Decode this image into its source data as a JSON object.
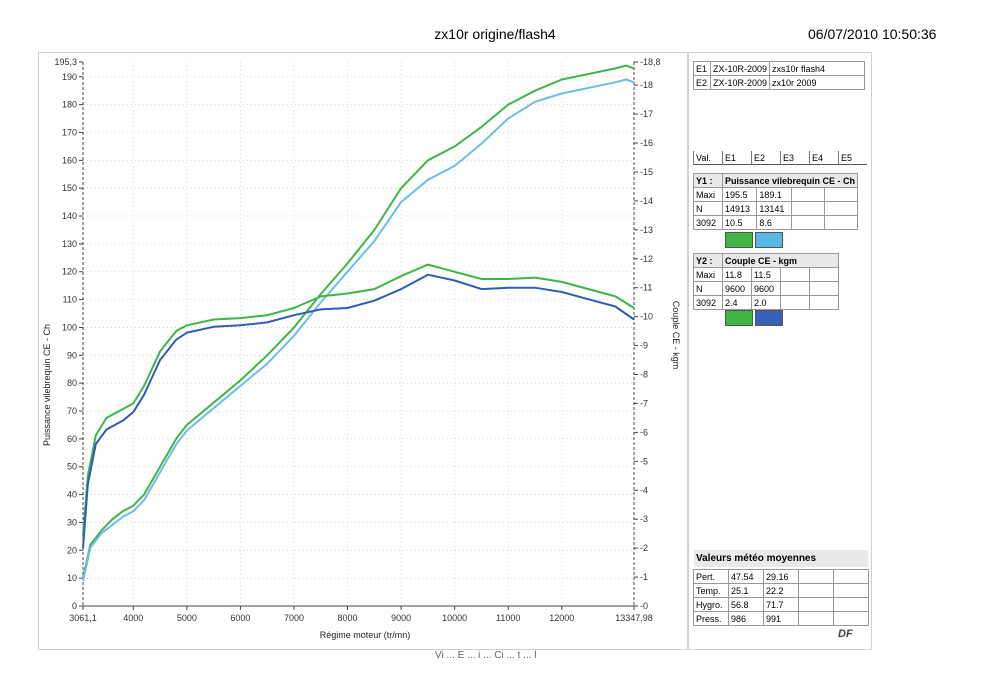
{
  "header": {
    "title": "zx10r origine/flash4",
    "datetime": "06/07/2010 10:50:36"
  },
  "entries": [
    {
      "id": "E1",
      "model": "ZX-10R-2009",
      "name": "zxs10r flash4"
    },
    {
      "id": "E2",
      "model": "ZX-10R-2009",
      "name": "zx10r 2009"
    }
  ],
  "val_header": [
    "Val.",
    "E1",
    "E2",
    "E3",
    "E4",
    "E5"
  ],
  "y1_block": {
    "key": "Y1 :",
    "title": "Puissance vilebrequin CE - Ch",
    "rows": [
      {
        "label": "Maxi",
        "e1": "195.5",
        "e2": "189.1"
      },
      {
        "label": "N",
        "e1": "14913",
        "e2": "13141"
      },
      {
        "label": "3092",
        "e1": "10.5",
        "e2": "8.6"
      }
    ],
    "swatches": [
      "#3fb548",
      "#5bb7e6"
    ]
  },
  "y2_block": {
    "key": "Y2 :",
    "title": "Couple CE - kgm",
    "rows": [
      {
        "label": "Maxi",
        "e1": "11.8",
        "e2": "11.5"
      },
      {
        "label": "N",
        "e1": "9600",
        "e2": "9600"
      },
      {
        "label": "3092",
        "e1": "2.4",
        "e2": "2.0"
      }
    ],
    "swatches": [
      "#3fb548",
      "#3562b8"
    ]
  },
  "weather": {
    "title": "Valeurs météo moyennes",
    "rows": [
      {
        "label": "Pert.",
        "v1": "47.54",
        "v2": "29.16"
      },
      {
        "label": "Temp.",
        "v1": "25.1",
        "v2": "22.2"
      },
      {
        "label": "Hygro.",
        "v1": "56.8",
        "v2": "71.7"
      },
      {
        "label": "Press.",
        "v1": "986",
        "v2": "991"
      }
    ]
  },
  "logo_text": "DF",
  "footer_fragment": "Vi ... E ... i ... Ci ... t ... l",
  "chart_data": {
    "type": "line",
    "xlabel": "Régime moteur (tr/mn)",
    "ylabel_left": "Puissance vilebrequin CE - Ch",
    "ylabel_right": "Couple CE - kgm",
    "xlim": [
      3061.1,
      13347.98
    ],
    "ylim_left": [
      0,
      195.3
    ],
    "ylim_right": [
      0,
      18.8
    ],
    "x_ticks": [
      "3061,1",
      "4000",
      "5000",
      "6000",
      "7000",
      "8000",
      "9000",
      "10000",
      "11000",
      "12000",
      "13347,98"
    ],
    "y_left_ticks": [
      "0",
      "10",
      "20",
      "30",
      "40",
      "50",
      "60",
      "70",
      "80",
      "90",
      "100",
      "110",
      "120",
      "130",
      "140",
      "150",
      "160",
      "170",
      "180",
      "190",
      "195,3"
    ],
    "y_right_ticks": [
      "0",
      "1",
      "2",
      "3",
      "4",
      "5",
      "6",
      "7",
      "8",
      "9",
      "10",
      "11",
      "12",
      "13",
      "14",
      "15",
      "16",
      "17",
      "18",
      "18,8"
    ],
    "colors": {
      "power_e1": "#3fb548",
      "power_e2": "#6cbde8",
      "torque_e1": "#3fb548",
      "torque_e2": "#2f5db5"
    },
    "series": [
      {
        "id": "power_e1",
        "axis": "left",
        "x": [
          3061,
          3200,
          3400,
          3600,
          3800,
          4000,
          4200,
          4500,
          4800,
          5000,
          5500,
          6000,
          6500,
          7000,
          7500,
          8000,
          8500,
          9000,
          9500,
          10000,
          10500,
          11000,
          11500,
          12000,
          12500,
          13000,
          13200,
          13348
        ],
        "y": [
          10,
          22,
          27,
          31,
          34,
          36,
          40,
          50,
          60,
          65,
          73,
          81,
          90,
          100,
          112,
          123,
          135,
          150,
          160,
          165,
          172,
          180,
          185,
          189,
          191,
          193,
          194,
          193
        ]
      },
      {
        "id": "power_e2",
        "axis": "left",
        "x": [
          3061,
          3200,
          3400,
          3600,
          3800,
          4000,
          4200,
          4500,
          4800,
          5000,
          5500,
          6000,
          6500,
          7000,
          7500,
          8000,
          8500,
          9000,
          9500,
          10000,
          10500,
          11000,
          11500,
          12000,
          12500,
          13000,
          13200,
          13348
        ],
        "y": [
          9,
          21,
          26,
          29,
          32,
          34,
          38,
          48,
          58,
          63,
          71,
          79,
          87,
          97,
          109,
          120,
          131,
          145,
          153,
          158,
          166,
          175,
          181,
          184,
          186,
          188,
          189,
          188
        ]
      },
      {
        "id": "torque_e1",
        "axis": "right",
        "x": [
          3061,
          3150,
          3300,
          3500,
          3800,
          4000,
          4200,
          4500,
          4800,
          5000,
          5500,
          6000,
          6500,
          7000,
          7500,
          8000,
          8500,
          9000,
          9500,
          10000,
          10500,
          11000,
          11500,
          12000,
          12500,
          13000,
          13348
        ],
        "y": [
          2.4,
          4.5,
          5.9,
          6.5,
          6.8,
          7.0,
          7.6,
          8.8,
          9.5,
          9.7,
          9.9,
          9.95,
          10.05,
          10.3,
          10.7,
          10.8,
          10.95,
          11.4,
          11.8,
          11.55,
          11.3,
          11.3,
          11.35,
          11.2,
          10.95,
          10.7,
          10.3
        ]
      },
      {
        "id": "torque_e2",
        "axis": "right",
        "x": [
          3061,
          3150,
          3300,
          3500,
          3800,
          4000,
          4200,
          4500,
          4800,
          5000,
          5500,
          6000,
          6500,
          7000,
          7500,
          8000,
          8500,
          9000,
          9500,
          10000,
          10500,
          11000,
          11500,
          12000,
          12500,
          13000,
          13348
        ],
        "y": [
          2.0,
          4.2,
          5.6,
          6.1,
          6.4,
          6.7,
          7.3,
          8.5,
          9.2,
          9.45,
          9.65,
          9.7,
          9.8,
          10.05,
          10.25,
          10.3,
          10.55,
          10.95,
          11.45,
          11.25,
          10.95,
          11.0,
          11.0,
          10.85,
          10.6,
          10.35,
          9.9
        ]
      }
    ]
  }
}
